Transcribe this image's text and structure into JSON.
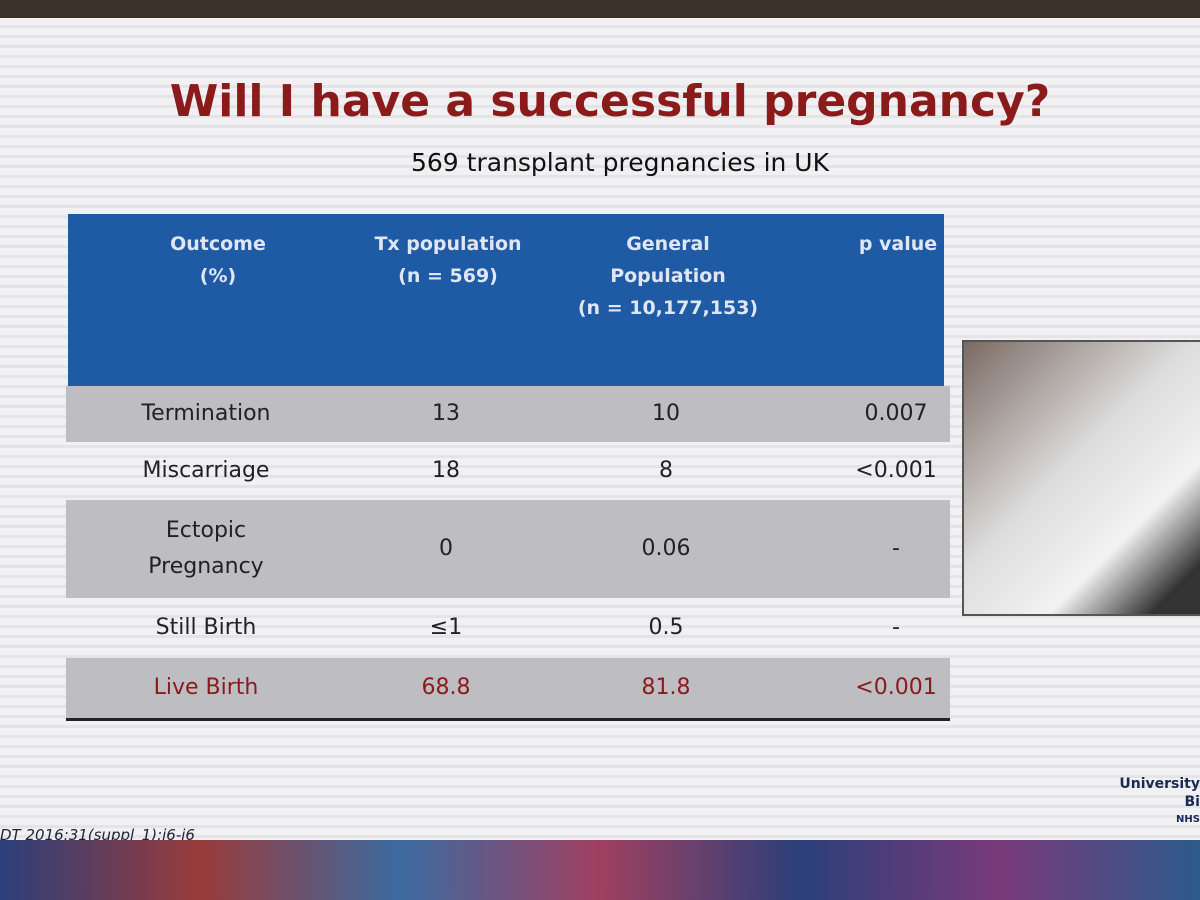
{
  "header": {
    "title": "Will I have a successful pregnancy?",
    "subtitle": "569 transplant pregnancies in UK"
  },
  "table": {
    "columns": [
      [
        "Outcome",
        "(%)"
      ],
      [
        "Tx population",
        "(n = 569)"
      ],
      [
        "General",
        "Population",
        "(n = 10,177,153)"
      ],
      [
        "p value"
      ]
    ],
    "rows": [
      [
        [
          "Termination"
        ],
        "13",
        "10",
        "0.007"
      ],
      [
        [
          "Miscarriage"
        ],
        "18",
        "8",
        "<0.001"
      ],
      [
        [
          "Ectopic",
          "Pregnancy"
        ],
        "0",
        "0.06",
        "-"
      ],
      [
        [
          "Still Birth"
        ],
        "≤1",
        "0.5",
        "-"
      ],
      [
        [
          "Live Birth"
        ],
        "68.8",
        "81.8",
        "<0.001"
      ]
    ]
  },
  "footer": {
    "citation": "DT 2016;31(suppl_1):i6-i6",
    "logo": [
      "University",
      "Bi",
      "NHS"
    ]
  }
}
